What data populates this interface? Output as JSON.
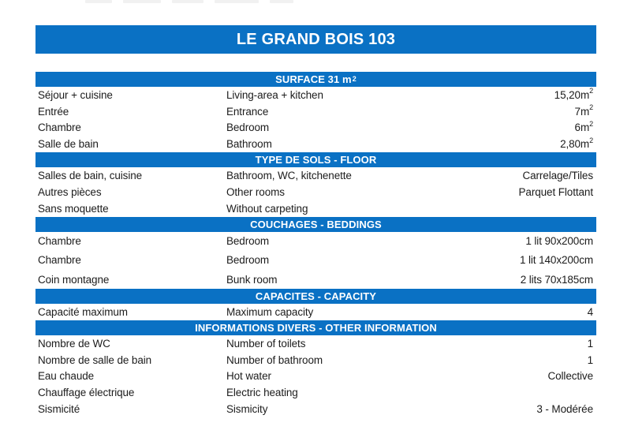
{
  "title": "LE GRAND BOIS 103",
  "colors": {
    "accent": "#0a71c4",
    "text": "#1c1c1c",
    "header_text": "#ffffff"
  },
  "sections": [
    {
      "header": "SURFACE 31 m",
      "header_sup": "2",
      "rows": [
        {
          "fr": "Séjour + cuisine",
          "en": "Living-area + kitchen",
          "value": "15,20m",
          "sup": "2"
        },
        {
          "fr": "Entrée",
          "en": "Entrance",
          "value": "7m",
          "sup": "2"
        },
        {
          "fr": "Chambre",
          "en": "Bedroom",
          "value": "6m",
          "sup": "2"
        },
        {
          "fr": "Salle de bain",
          "en": "Bathroom",
          "value": "2,80m",
          "sup": "2"
        }
      ]
    },
    {
      "header": "TYPE DE SOLS - FLOOR",
      "rows": [
        {
          "fr": "Salles de bain, cuisine",
          "en": "Bathroom, WC, kitchenette",
          "value": "Carrelage/Tiles"
        },
        {
          "fr": "Autres pièces",
          "en": "Other rooms",
          "value": "Parquet Flottant"
        },
        {
          "fr": "Sans moquette",
          "en": "Without carpeting",
          "value": ""
        }
      ]
    },
    {
      "header": "COUCHAGES - BEDDINGS",
      "rows": [
        {
          "fr": "Chambre",
          "en": "Bedroom",
          "value": "1 lit 90x200cm"
        },
        {
          "fr": "Chambre",
          "en": "Bedroom",
          "value": "1 lit 140x200cm"
        },
        {
          "fr": "Coin montagne",
          "en": "Bunk room",
          "value": "2 lits 70x185cm"
        }
      ]
    },
    {
      "header": "CAPACITES - CAPACITY",
      "rows": [
        {
          "fr": "Capacité maximum",
          "en": "Maximum capacity",
          "value": "4"
        }
      ]
    },
    {
      "header": "INFORMATIONS DIVERS - OTHER INFORMATION",
      "rows": [
        {
          "fr": "Nombre de WC",
          "en": "Number of toilets",
          "value": "1"
        },
        {
          "fr": "Nombre de salle de bain",
          "en": "Number of bathroom",
          "value": "1"
        },
        {
          "fr": "Eau chaude",
          "en": "Hot water",
          "value": "Collective"
        },
        {
          "fr": "Chauffage électrique",
          "en": "Electric heating",
          "value": ""
        },
        {
          "fr": "Sismicité",
          "en": "Sismicity",
          "value": "3 - Modérée"
        }
      ]
    }
  ]
}
